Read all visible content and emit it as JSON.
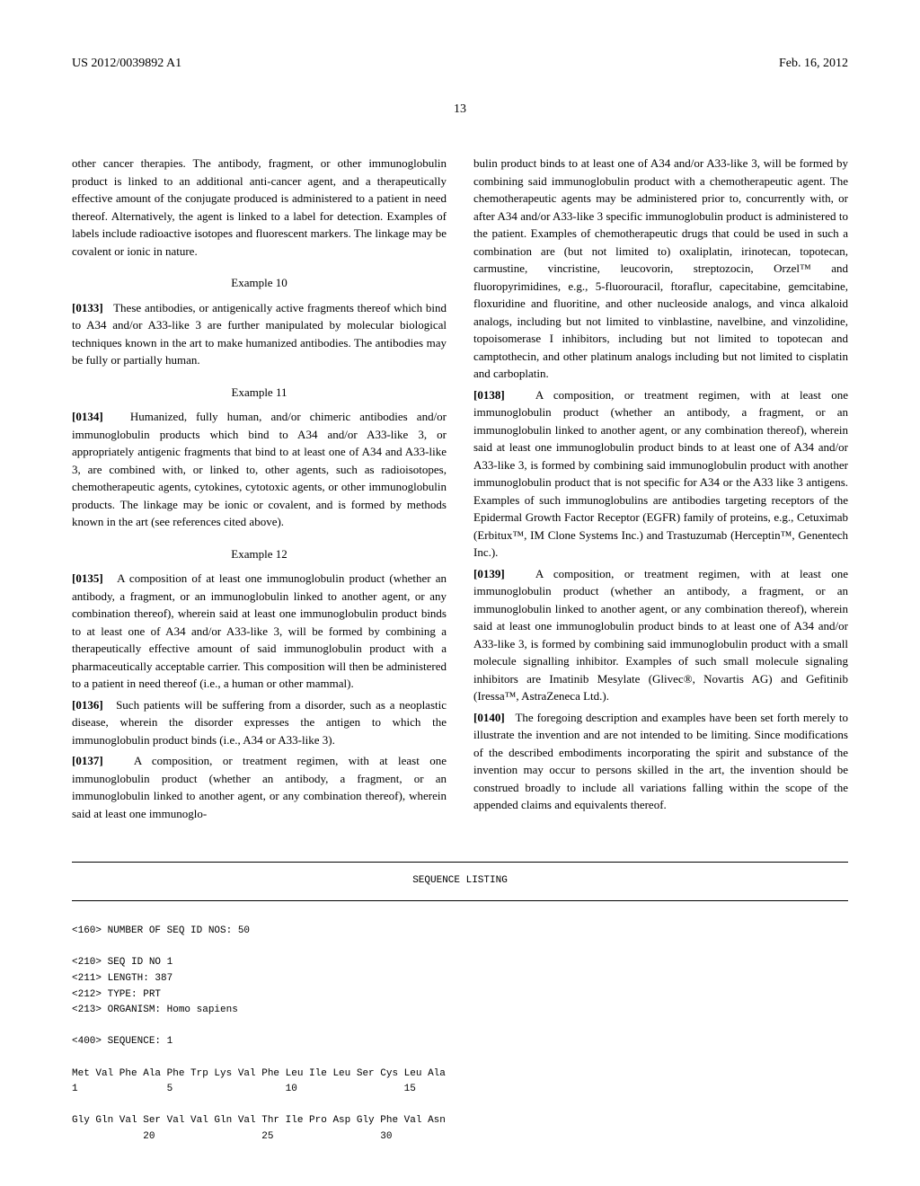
{
  "header": {
    "pub_number": "US 2012/0039892 A1",
    "date": "Feb. 16, 2012"
  },
  "page_number": "13",
  "left_column": {
    "intro": "other cancer therapies. The antibody, fragment, or other immunoglobulin product is linked to an additional anti-cancer agent, and a therapeutically effective amount of the conjugate produced is administered to a patient in need thereof. Alternatively, the agent is linked to a label for detection. Examples of labels include radioactive isotopes and fluorescent markers. The linkage may be covalent or ionic in nature.",
    "example10_heading": "Example 10",
    "para0133_num": "[0133]",
    "para0133": "These antibodies, or antigenically active fragments thereof which bind to A34 and/or A33-like 3 are further manipulated by molecular biological techniques known in the art to make humanized antibodies. The antibodies may be fully or partially human.",
    "example11_heading": "Example 11",
    "para0134_num": "[0134]",
    "para0134": "Humanized, fully human, and/or chimeric antibodies and/or immunoglobulin products which bind to A34 and/or A33-like 3, or appropriately antigenic fragments that bind to at least one of A34 and A33-like 3, are combined with, or linked to, other agents, such as radioisotopes, chemotherapeutic agents, cytokines, cytotoxic agents, or other immunoglobulin products. The linkage may be ionic or covalent, and is formed by methods known in the art (see references cited above).",
    "example12_heading": "Example 12",
    "para0135_num": "[0135]",
    "para0135": "A composition of at least one immunoglobulin product (whether an antibody, a fragment, or an immunoglobulin linked to another agent, or any combination thereof), wherein said at least one immunoglobulin product binds to at least one of A34 and/or A33-like 3, will be formed by combining a therapeutically effective amount of said immunoglobulin product with a pharmaceutically acceptable carrier. This composition will then be administered to a patient in need thereof (i.e., a human or other mammal).",
    "para0136_num": "[0136]",
    "para0136": "Such patients will be suffering from a disorder, such as a neoplastic disease, wherein the disorder expresses the antigen to which the immunoglobulin product binds (i.e., A34 or A33-like 3).",
    "para0137_num": "[0137]",
    "para0137": "A composition, or treatment regimen, with at least one immunoglobulin product (whether an antibody, a fragment, or an immunoglobulin linked to another agent, or any combination thereof), wherein said at least one immunoglo-"
  },
  "right_column": {
    "para0137_cont": "bulin product binds to at least one of A34 and/or A33-like 3, will be formed by combining said immunoglobulin product with a chemotherapeutic agent. The chemotherapeutic agents may be administered prior to, concurrently with, or after A34 and/or A33-like 3 specific immunoglobulin product is administered to the patient. Examples of chemotherapeutic drugs that could be used in such a combination are (but not limited to) oxaliplatin, irinotecan, topotecan, carmustine, vincristine, leucovorin, streptozocin, Orzel™ and fluoropyrimidines, e.g., 5-fluorouracil, ftoraflur, capecitabine, gemcitabine, floxuridine and fluoritine, and other nucleoside analogs, and vinca alkaloid analogs, including but not limited to vinblastine, navelbine, and vinzolidine, topoisomerase I inhibitors, including but not limited to topotecan and camptothecin, and other platinum analogs including but not limited to cisplatin and carboplatin.",
    "para0138_num": "[0138]",
    "para0138": "A composition, or treatment regimen, with at least one immunoglobulin product (whether an antibody, a fragment, or an immunoglobulin linked to another agent, or any combination thereof), wherein said at least one immunoglobulin product binds to at least one of A34 and/or A33-like 3, is formed by combining said immunoglobulin product with another immunoglobulin product that is not specific for A34 or the A33 like 3 antigens. Examples of such immunoglobulins are antibodies targeting receptors of the Epidermal Growth Factor Receptor (EGFR) family of proteins, e.g., Cetuximab (Erbitux™, IM Clone Systems Inc.) and Trastuzumab (Herceptin™, Genentech Inc.).",
    "para0139_num": "[0139]",
    "para0139": "A composition, or treatment regimen, with at least one immunoglobulin product (whether an antibody, a fragment, or an immunoglobulin linked to another agent, or any combination thereof), wherein said at least one immunoglobulin product binds to at least one of A34 and/or A33-like 3, is formed by combining said immunoglobulin product with a small molecule signalling inhibitor. Examples of such small molecule signaling inhibitors are Imatinib Mesylate (Glivec®, Novartis AG) and Gefitinib (Iressa™, AstraZeneca Ltd.).",
    "para0140_num": "[0140]",
    "para0140": "The foregoing description and examples have been set forth merely to illustrate the invention and are not intended to be limiting. Since modifications of the described embodiments incorporating the spirit and substance of the invention may occur to persons skilled in the art, the invention should be construed broadly to include all variations falling within the scope of the appended claims and equivalents thereof."
  },
  "sequence": {
    "title": "SEQUENCE LISTING",
    "line1": "<160> NUMBER OF SEQ ID NOS: 50",
    "line2": "<210> SEQ ID NO 1",
    "line3": "<211> LENGTH: 387",
    "line4": "<212> TYPE: PRT",
    "line5": "<213> ORGANISM: Homo sapiens",
    "line6": "<400> SEQUENCE: 1",
    "seq1": "Met Val Phe Ala Phe Trp Lys Val Phe Leu Ile Leu Ser Cys Leu Ala",
    "seq1_nums": "1               5                   10                  15",
    "seq2": "Gly Gln Val Ser Val Val Gln Val Thr Ile Pro Asp Gly Phe Val Asn",
    "seq2_nums": "            20                  25                  30"
  }
}
